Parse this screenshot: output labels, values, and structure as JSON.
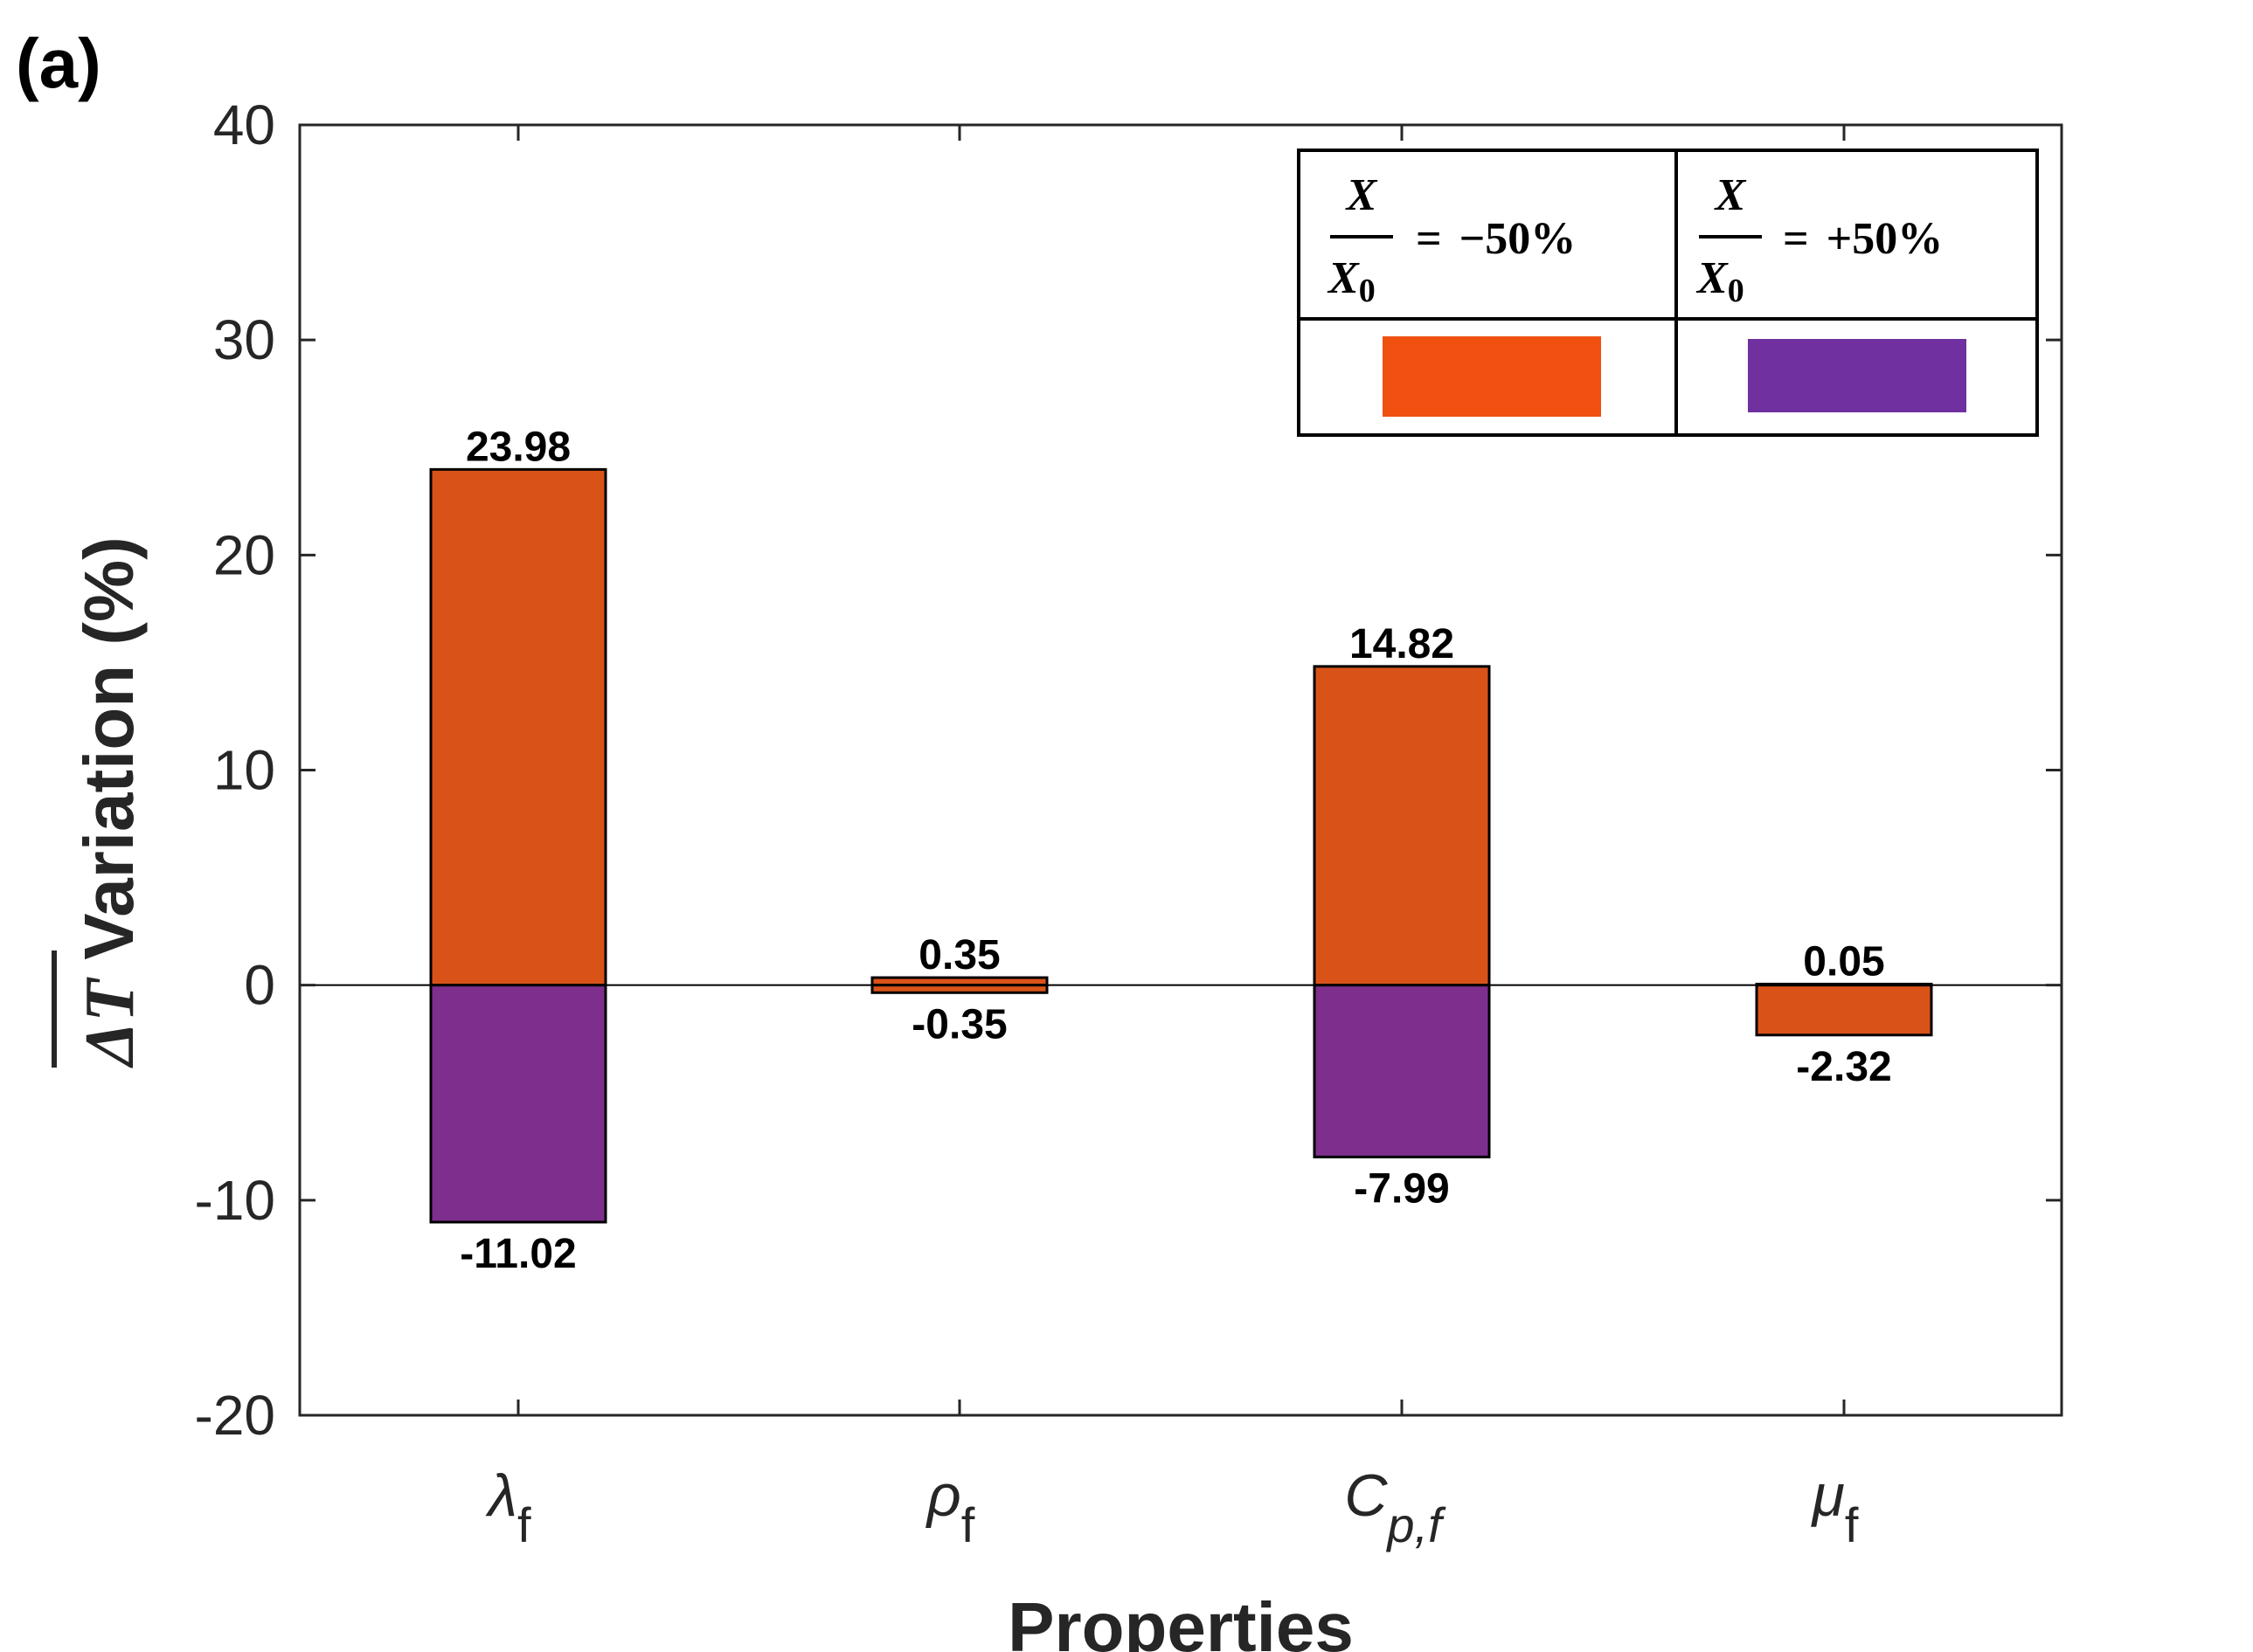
{
  "panel_label": "(a)",
  "colors": {
    "minus_bar": "#D95319",
    "plus_bar": "#7E2F8E",
    "legend_minus": "#F05010",
    "legend_plus": "#7030A0"
  },
  "chart_data": {
    "type": "bar",
    "title": "",
    "xlabel": "Properties",
    "ylabel_symbol": "ΔT",
    "ylabel_text": " Variation (%)",
    "ylim": [
      -20,
      40
    ],
    "yticks": [
      -20,
      -10,
      0,
      10,
      20,
      30,
      40
    ],
    "grid": false,
    "categories": [
      {
        "main": "λ",
        "sub": "f",
        "sub_italic": false
      },
      {
        "main": "ρ",
        "sub": "f",
        "sub_italic": false
      },
      {
        "main": "C",
        "sub": "p,f",
        "sub_italic": true
      },
      {
        "main": "μ",
        "sub": "f",
        "sub_italic": false
      }
    ],
    "series": [
      {
        "name": "X/X0 = −50%",
        "values": [
          23.98,
          0.35,
          14.82,
          0.05
        ],
        "labels": [
          "23.98",
          "0.35",
          "14.82",
          "0.05"
        ]
      },
      {
        "name": "X/X0 = +50%",
        "values": [
          -11.02,
          -0.35,
          -7.99,
          -2.32
        ],
        "labels": [
          "-11.02",
          "-0.35",
          "-7.99",
          "-2.32"
        ],
        "color_key": [
          "plus_bar",
          "minus_bar",
          "plus_bar",
          "minus_bar"
        ]
      }
    ],
    "legend": {
      "placement": "top-right",
      "entries": [
        {
          "numerator": "X",
          "denominator": "X",
          "denominator_sub": "0",
          "equals": "=",
          "value": "−50%",
          "color_key": "legend_minus"
        },
        {
          "numerator": "X",
          "denominator": "X",
          "denominator_sub": "0",
          "equals": "=",
          "value": "+50%",
          "color_key": "legend_plus"
        }
      ]
    }
  }
}
